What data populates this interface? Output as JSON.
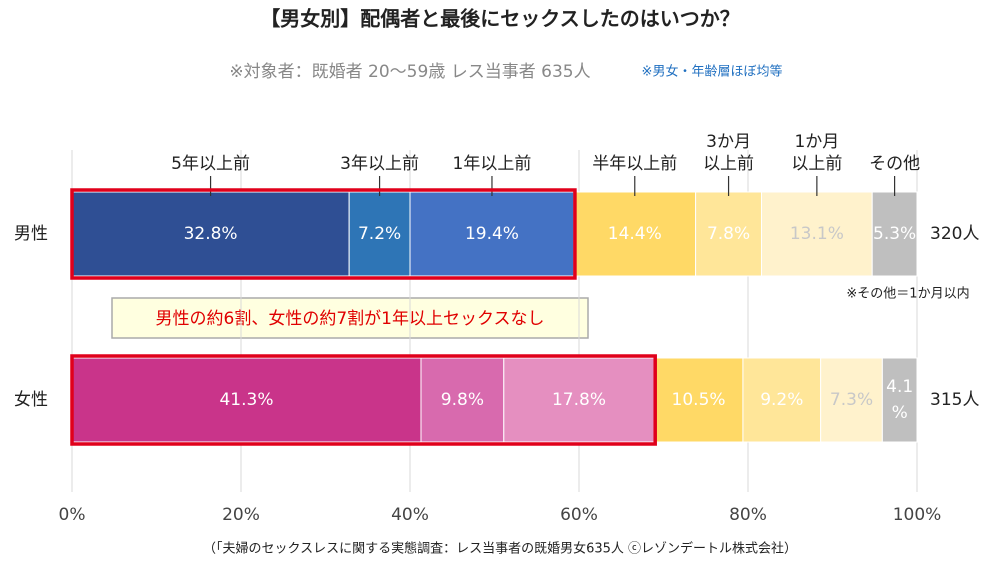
{
  "chart_data": {
    "type": "stacked-bar-horizontal",
    "title": "【男女別】配偶者と最後にセックスしたのはいつか？",
    "subtitle": "※対象者：既婚者 20〜59歳 レス当事者 635人",
    "subtitle_note": "※男女・年齢層ほぼ均等",
    "categories": [
      "男性",
      "女性"
    ],
    "totals": [
      "320人",
      "315人"
    ],
    "series": [
      {
        "name": "5年以上前",
        "colors": [
          "#2f4f94",
          "#c9348a"
        ],
        "label_color": "#ffffff",
        "values": [
          32.8,
          41.3
        ],
        "value_labels": [
          "32.8%",
          "41.3%"
        ]
      },
      {
        "name": "3年以上前",
        "colors": [
          "#2e75b6",
          "#d86aae"
        ],
        "label_color": "#ffffff",
        "values": [
          7.2,
          9.8
        ],
        "value_labels": [
          "7.2%",
          "9.8%"
        ]
      },
      {
        "name": "1年以上前",
        "colors": [
          "#4472c4",
          "#e58fc0"
        ],
        "label_color": "#ffffff",
        "values": [
          19.4,
          17.8
        ],
        "value_labels": [
          "19.4%",
          "17.8%"
        ]
      },
      {
        "name": "半年以上前",
        "colors": [
          "#ffd966",
          "#ffd966"
        ],
        "label_color": "#ffffff",
        "values": [
          14.4,
          10.5
        ],
        "value_labels": [
          "14.4%",
          "10.5%"
        ]
      },
      {
        "name": "3か月\n以上前",
        "colors": [
          "#ffe699",
          "#ffe699"
        ],
        "label_color": "#ffffff",
        "values": [
          7.8,
          9.2
        ],
        "value_labels": [
          "7.8%",
          "9.2%"
        ]
      },
      {
        "name": "1か月\n以上前",
        "colors": [
          "#fff2cc",
          "#fff2cc"
        ],
        "label_color": "#c8c8c8",
        "values": [
          13.1,
          7.3
        ],
        "value_labels": [
          "13.1%",
          "7.3%"
        ]
      },
      {
        "name": "その他",
        "colors": [
          "#bfbfbf",
          "#bfbfbf"
        ],
        "label_color": "#ffffff",
        "values": [
          5.3,
          4.1
        ],
        "value_labels": [
          "5.3%",
          "4.1%"
        ]
      }
    ],
    "highlight_series": 3,
    "xlim": [
      0,
      100
    ],
    "xticks": [
      {
        "value": 0,
        "label": "0%"
      },
      {
        "value": 20,
        "label": "20%"
      },
      {
        "value": 40,
        "label": "40%"
      },
      {
        "value": 60,
        "label": "60%"
      },
      {
        "value": 80,
        "label": "80%"
      },
      {
        "value": 100,
        "label": "100%"
      }
    ],
    "grid": true,
    "other_note": "※その他＝1か月以内",
    "callout": "男性の約6割、女性の約7割が1年以上セックスなし",
    "source": "（「夫婦のセックスレスに関する実態調査：レス当事者の既婚男女635人 ⓒレゾンデートル株式会社）"
  }
}
